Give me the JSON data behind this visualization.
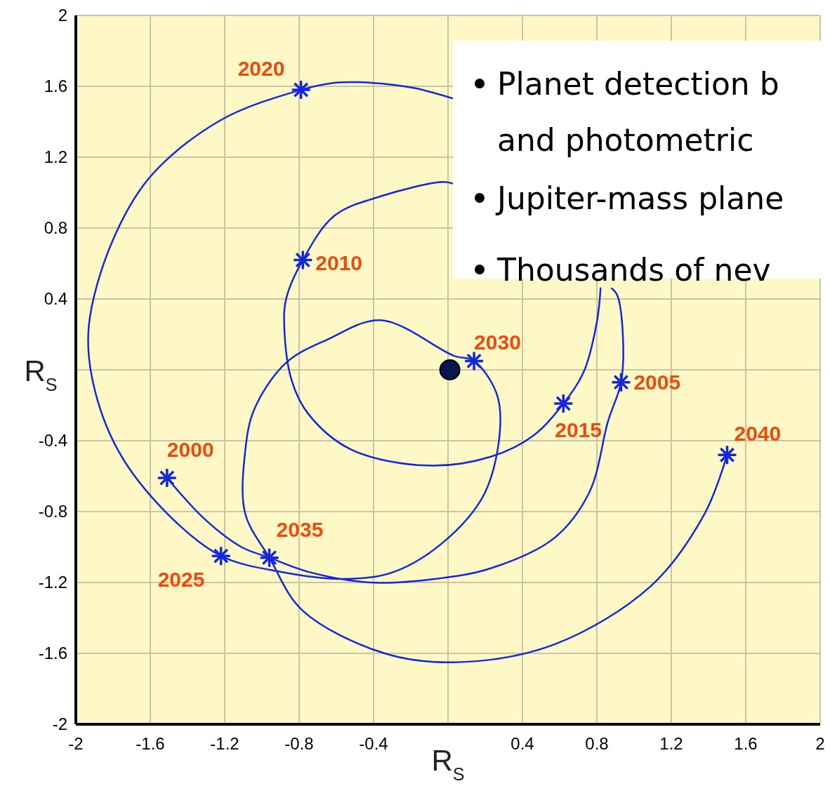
{
  "chart_data": {
    "type": "scatter",
    "xlabel": "R$_{S}$",
    "ylabel": "R$_{S}$",
    "xlim": [
      -2,
      2
    ],
    "ylim": [
      -2,
      2
    ],
    "xticks": [
      -2,
      -1.6,
      -1.2,
      -0.8,
      -0.4,
      {
        "value": 0,
        "label": null
      },
      0.4,
      0.8,
      1.2,
      1.6,
      2
    ],
    "yticks": [
      -2,
      -1.6,
      -1.2,
      -0.8,
      -0.4,
      {
        "value": 0,
        "label": null
      },
      0.4,
      0.8,
      1.2,
      1.6,
      2
    ],
    "grid": true,
    "series": [
      {
        "type": "line",
        "color": "#1428d8",
        "marker": "none",
        "x": [
          -1.51,
          -1.31,
          -1.11,
          -0.96,
          -0.75,
          -0.42,
          -0.07,
          0.23,
          0.57,
          0.76,
          0.86,
          0.93,
          0.94,
          0.91,
          0.88,
          null,
          0.03,
          -0.03,
          -0.36,
          -0.61,
          -0.78,
          -0.87,
          -0.88,
          -0.84,
          -0.75,
          -0.52,
          -0.11,
          0.23,
          0.46,
          0.62,
          0.73,
          0.8,
          0.82,
          null,
          0.03,
          -0.18,
          -0.41,
          -0.61,
          -0.79,
          -1.22,
          -1.6,
          -1.81,
          -1.93,
          -1.91,
          -1.77,
          -1.51,
          -1.22,
          -0.9,
          -0.57,
          -0.29,
          0,
          0.2,
          0.28,
          0.26,
          0.14,
          0.03,
          -0.36,
          -0.65,
          -0.87,
          -1.04,
          -1.09,
          -1.09,
          -0.96,
          -0.78,
          -0.34,
          0.05,
          0.57,
          1.09,
          1.38,
          1.5
        ],
        "values": [
          -0.61,
          -0.84,
          -1,
          -1.06,
          -1.14,
          -1.2,
          -1.18,
          -1.12,
          -0.95,
          -0.69,
          -0.29,
          -0.07,
          0.19,
          0.42,
          0.46,
          null,
          1.05,
          1.06,
          0.98,
          0.87,
          0.62,
          0.4,
          0.25,
          -0.06,
          -0.25,
          -0.45,
          -0.54,
          -0.49,
          -0.37,
          -0.19,
          -0.01,
          0.27,
          0.46,
          null,
          1.53,
          1.59,
          1.62,
          1.62,
          1.58,
          1.41,
          1.09,
          0.71,
          0.25,
          -0.06,
          -0.46,
          -0.81,
          -1.05,
          -1.14,
          -1.18,
          -1.14,
          -0.95,
          -0.69,
          -0.33,
          -0.13,
          0.05,
          0.08,
          0.28,
          0.17,
          0.04,
          -0.22,
          -0.46,
          -0.81,
          -1.06,
          -1.36,
          -1.6,
          -1.65,
          -1.55,
          -1.22,
          -0.81,
          -0.48
        ]
      },
      {
        "color": "#1428d8",
        "marker": "cross",
        "x": [
          -1.51,
          0.93,
          -0.78,
          0.62,
          -0.79,
          -1.22,
          0.14,
          -0.96,
          1.5
        ],
        "values": [
          -0.61,
          -0.07,
          0.62,
          -0.19,
          1.58,
          -1.05,
          0.05,
          -1.06,
          -0.48
        ]
      },
      {
        "color": "#0a1650",
        "marker": "circle",
        "x": [
          0.01
        ],
        "values": [
          0
        ]
      }
    ],
    "annotations": [
      "Planet detection b",
      "and photometric",
      "Jupiter-mass plane",
      "Thousands of nev",
      {
        "text": "2000",
        "x": -1.51,
        "y": -0.61
      },
      {
        "text": "2005",
        "x": 0.93,
        "y": -0.07
      },
      {
        "text": "2010",
        "x": -0.78,
        "y": 0.62
      },
      {
        "text": "2015",
        "x": 0.62,
        "y": -0.19
      },
      {
        "text": "2020",
        "x": -0.79,
        "y": 1.58
      },
      {
        "text": "2025",
        "x": -1.22,
        "y": -1.05
      },
      {
        "text": "2030",
        "x": 0.14,
        "y": 0.05
      },
      {
        "text": "2035",
        "x": -0.96,
        "y": -1.06
      },
      {
        "text": "2040",
        "x": 1.5,
        "y": -0.48
      }
    ]
  }
}
